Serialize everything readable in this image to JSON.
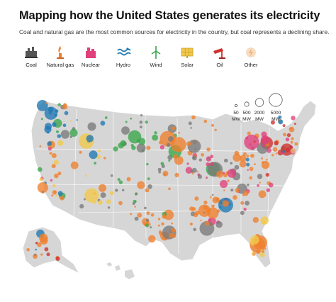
{
  "title": "Mapping how the United States generates its electricity",
  "subtitle": "Coal and natural gas are the most common sources for electricity in the country, but coal represents a declining share.",
  "legend": {
    "items": [
      {
        "label": "Coal",
        "color": "#7a7a7a",
        "icon": "coal-icon"
      },
      {
        "label": "Natural gas",
        "color": "#f07f2c",
        "icon": "natural-gas-icon"
      },
      {
        "label": "Nuclear",
        "color": "#e0407b",
        "icon": "nuclear-icon"
      },
      {
        "label": "Hydro",
        "color": "#1f78b4",
        "icon": "hydro-icon"
      },
      {
        "label": "Wind",
        "color": "#3aa64a",
        "icon": "wind-icon"
      },
      {
        "label": "Solar",
        "color": "#f2c94c",
        "icon": "solar-icon"
      },
      {
        "label": "Oil",
        "color": "#d0312d",
        "icon": "oil-icon"
      },
      {
        "label": "Other",
        "color": "#e8b47a",
        "icon": "other-icon"
      }
    ]
  },
  "size_legend": {
    "entries": [
      {
        "value": "50",
        "unit": "MW"
      },
      {
        "value": "500",
        "unit": "MW"
      },
      {
        "value": "2000",
        "unit": "MW"
      },
      {
        "value": "5000",
        "unit": "MW"
      }
    ]
  },
  "map": {
    "land_color": "#d6d6d6",
    "border_color": "#ffffff"
  }
}
